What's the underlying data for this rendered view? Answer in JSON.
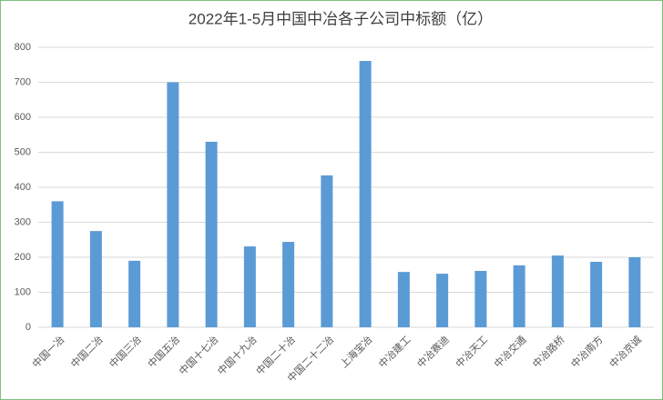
{
  "chart_data": {
    "type": "bar",
    "title": "2022年1-5月中国中冶各子公司中标额（亿）",
    "categories": [
      "中国一冶",
      "中国二冶",
      "中国三冶",
      "中国五冶",
      "中国十七冶",
      "中国十九冶",
      "中国二十冶",
      "中国二十二冶",
      "上海宝冶",
      "中冶建工",
      "中冶赛迪",
      "中冶天工",
      "中冶交通",
      "中冶路桥",
      "中冶南方",
      "中冶京诚"
    ],
    "values": [
      360,
      275,
      190,
      700,
      530,
      231,
      244,
      434,
      761,
      158,
      153,
      161,
      177,
      205,
      187,
      200
    ],
    "color": "#5b9bd5",
    "ylim": [
      0,
      800
    ],
    "yticks": [
      0,
      100,
      200,
      300,
      400,
      500,
      600,
      700,
      800
    ],
    "grid": true
  }
}
